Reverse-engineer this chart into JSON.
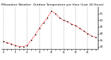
{
  "title": "Milwaukee Weather  Outdoor Temperature per Hour (Last 24 Hours)",
  "hours": [
    0,
    1,
    2,
    3,
    4,
    5,
    6,
    7,
    8,
    9,
    10,
    11,
    12,
    13,
    14,
    15,
    16,
    17,
    18,
    19,
    20,
    21,
    22,
    23
  ],
  "temps": [
    34,
    33,
    32,
    31,
    30,
    30,
    31,
    35,
    39,
    44,
    48,
    52,
    57,
    55,
    52,
    50,
    49,
    47,
    46,
    44,
    42,
    40,
    38,
    37
  ],
  "line_color": "#ff0000",
  "marker_color": "#000000",
  "bg_color": "#ffffff",
  "grid_color": "#888888",
  "title_fontsize": 3.2,
  "ylim": [
    28,
    60
  ],
  "ytick_values": [
    30,
    35,
    40,
    45,
    50,
    55
  ],
  "xtick_every": 1,
  "xlabel_fontsize": 2.5,
  "ylabel_fontsize": 2.8
}
